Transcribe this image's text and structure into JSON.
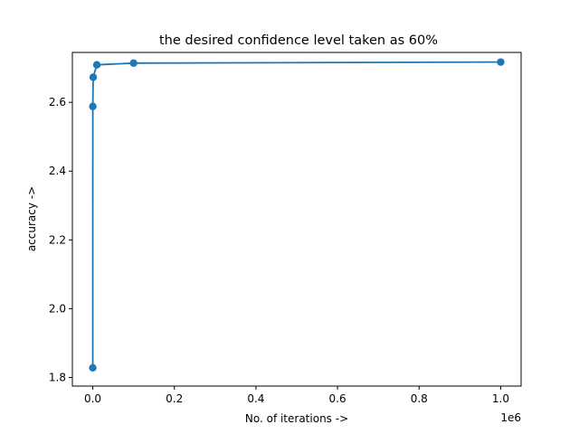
{
  "chart_data": {
    "type": "line",
    "title": "the desired confidence level taken as 60%",
    "xlabel": "No. of iterations ->",
    "ylabel": "accuracy ->",
    "x_offset_label": "1e6",
    "xlim": [
      -50000,
      1050000
    ],
    "ylim": [
      1.775,
      2.745
    ],
    "x_ticks": [
      0,
      200000,
      400000,
      600000,
      800000,
      1000000
    ],
    "x_tick_labels": [
      "0.0",
      "0.2",
      "0.4",
      "0.6",
      "0.8",
      "1.0"
    ],
    "y_ticks": [
      1.8,
      2.0,
      2.2,
      2.4,
      2.6
    ],
    "y_tick_labels": [
      "1.8",
      "2.0",
      "2.2",
      "2.4",
      "2.6"
    ],
    "grid": false,
    "series": [
      {
        "color": "#1f77b4",
        "marker": "circle",
        "x": [
          10,
          100,
          1000,
          10000,
          100000,
          1000000
        ],
        "y": [
          1.828,
          2.588,
          2.673,
          2.709,
          2.714,
          2.717
        ]
      }
    ]
  }
}
